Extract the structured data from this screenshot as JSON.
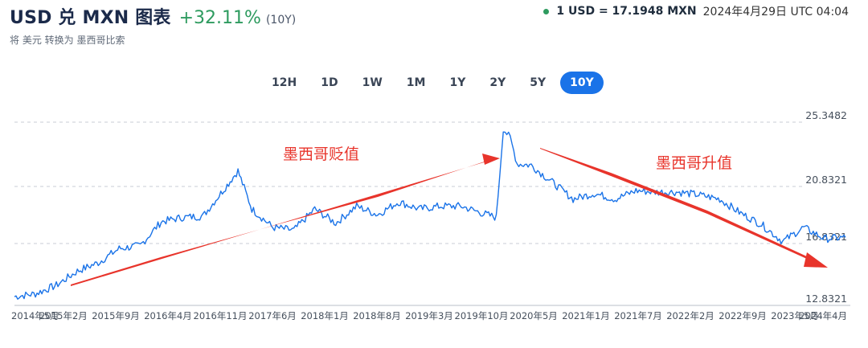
{
  "header": {
    "title": "USD 兑 MXN 图表",
    "change": "+32.11%",
    "period": "(10Y)"
  },
  "subtitle": "将 美元 转换为 墨西哥比索",
  "rate": {
    "value": "1 USD = 17.1948 MXN",
    "timestamp": "2024年4月29日 UTC 04:04",
    "status_color": "#2e9b5f"
  },
  "periods": [
    {
      "label": "12H",
      "active": false
    },
    {
      "label": "1D",
      "active": false
    },
    {
      "label": "1W",
      "active": false
    },
    {
      "label": "1M",
      "active": false
    },
    {
      "label": "1Y",
      "active": false
    },
    {
      "label": "2Y",
      "active": false
    },
    {
      "label": "5Y",
      "active": false
    },
    {
      "label": "10Y",
      "active": true
    }
  ],
  "annotations": {
    "left": "墨西哥贬值",
    "right": "墨西哥升值"
  },
  "colors": {
    "line": "#1a73e8",
    "annotation": "#e8342b",
    "positive": "#2e9b5f",
    "grid": "#c9ced6"
  },
  "chart_data": {
    "type": "line",
    "x_tick_labels": [
      "2014年5月",
      "2015年2月",
      "2015年9月",
      "2016年4月",
      "2016年11月",
      "2017年6月",
      "2018年1月",
      "2018年8月",
      "2019年3月",
      "2019年10月",
      "2020年5月",
      "2021年1月",
      "2021年7月",
      "2022年2月",
      "2022年9月",
      "2023年5月",
      "2024年4月"
    ],
    "y_tick_labels": [
      "25.3482",
      "20.8321",
      "16.8321",
      "12.8321"
    ],
    "ylim": [
      12.8321,
      25.3482
    ],
    "grid": "horizontal dashed",
    "series": [
      {
        "x": [
          "2014-05",
          "2014-08",
          "2014-11",
          "2015-02",
          "2015-05",
          "2015-08",
          "2015-11",
          "2016-02",
          "2016-05",
          "2016-08",
          "2016-11",
          "2017-01",
          "2017-03",
          "2017-06",
          "2017-09",
          "2017-12",
          "2018-03",
          "2018-06",
          "2018-09",
          "2018-12",
          "2019-03",
          "2019-06",
          "2019-09",
          "2019-12",
          "2020-02",
          "2020-03",
          "2020-04",
          "2020-05",
          "2020-07",
          "2020-10",
          "2021-01",
          "2021-04",
          "2021-07",
          "2021-10",
          "2022-01",
          "2022-04",
          "2022-07",
          "2022-10",
          "2023-01",
          "2023-04",
          "2023-07",
          "2023-10",
          "2024-01",
          "2024-04"
        ],
        "y": [
          13.0,
          13.2,
          13.8,
          14.8,
          15.4,
          16.4,
          16.6,
          18.3,
          18.6,
          18.7,
          20.6,
          21.9,
          19.2,
          17.9,
          17.7,
          19.2,
          18.2,
          19.4,
          18.8,
          19.7,
          19.2,
          19.4,
          19.4,
          18.9,
          18.6,
          24.9,
          24.2,
          22.4,
          22.3,
          21.1,
          19.9,
          20.3,
          19.9,
          20.5,
          20.4,
          20.4,
          20.2,
          19.9,
          18.9,
          18.1,
          16.9,
          17.9,
          17.1,
          17.19
        ]
      }
    ]
  }
}
